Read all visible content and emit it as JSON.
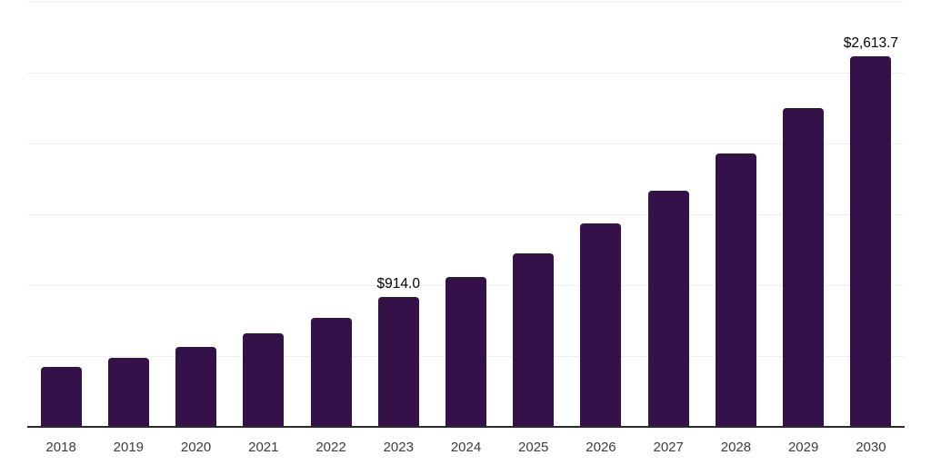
{
  "chart_data": {
    "type": "bar",
    "title": "",
    "xlabel": "",
    "ylabel": "",
    "categories": [
      "2018",
      "2019",
      "2020",
      "2021",
      "2022",
      "2023",
      "2024",
      "2025",
      "2026",
      "2027",
      "2028",
      "2029",
      "2030"
    ],
    "values": [
      420,
      486,
      563,
      658,
      768,
      914.0,
      1055,
      1222,
      1438,
      1668,
      1932,
      2250,
      2613.7
    ],
    "annotations": [
      {
        "category": "2023",
        "text": "$914.0"
      },
      {
        "category": "2030",
        "text": "$2,613.7"
      }
    ],
    "ylim": [
      0,
      3000
    ],
    "grid_step": 500,
    "grid": "horizontal-only",
    "legend": "none",
    "colors": {
      "bar": "#351149",
      "gridline": "#f0f0f0",
      "axis_line": "#2b2b2b",
      "tick_label": "#3c3c3c",
      "value_label": "#000000",
      "background": "#ffffff"
    }
  }
}
